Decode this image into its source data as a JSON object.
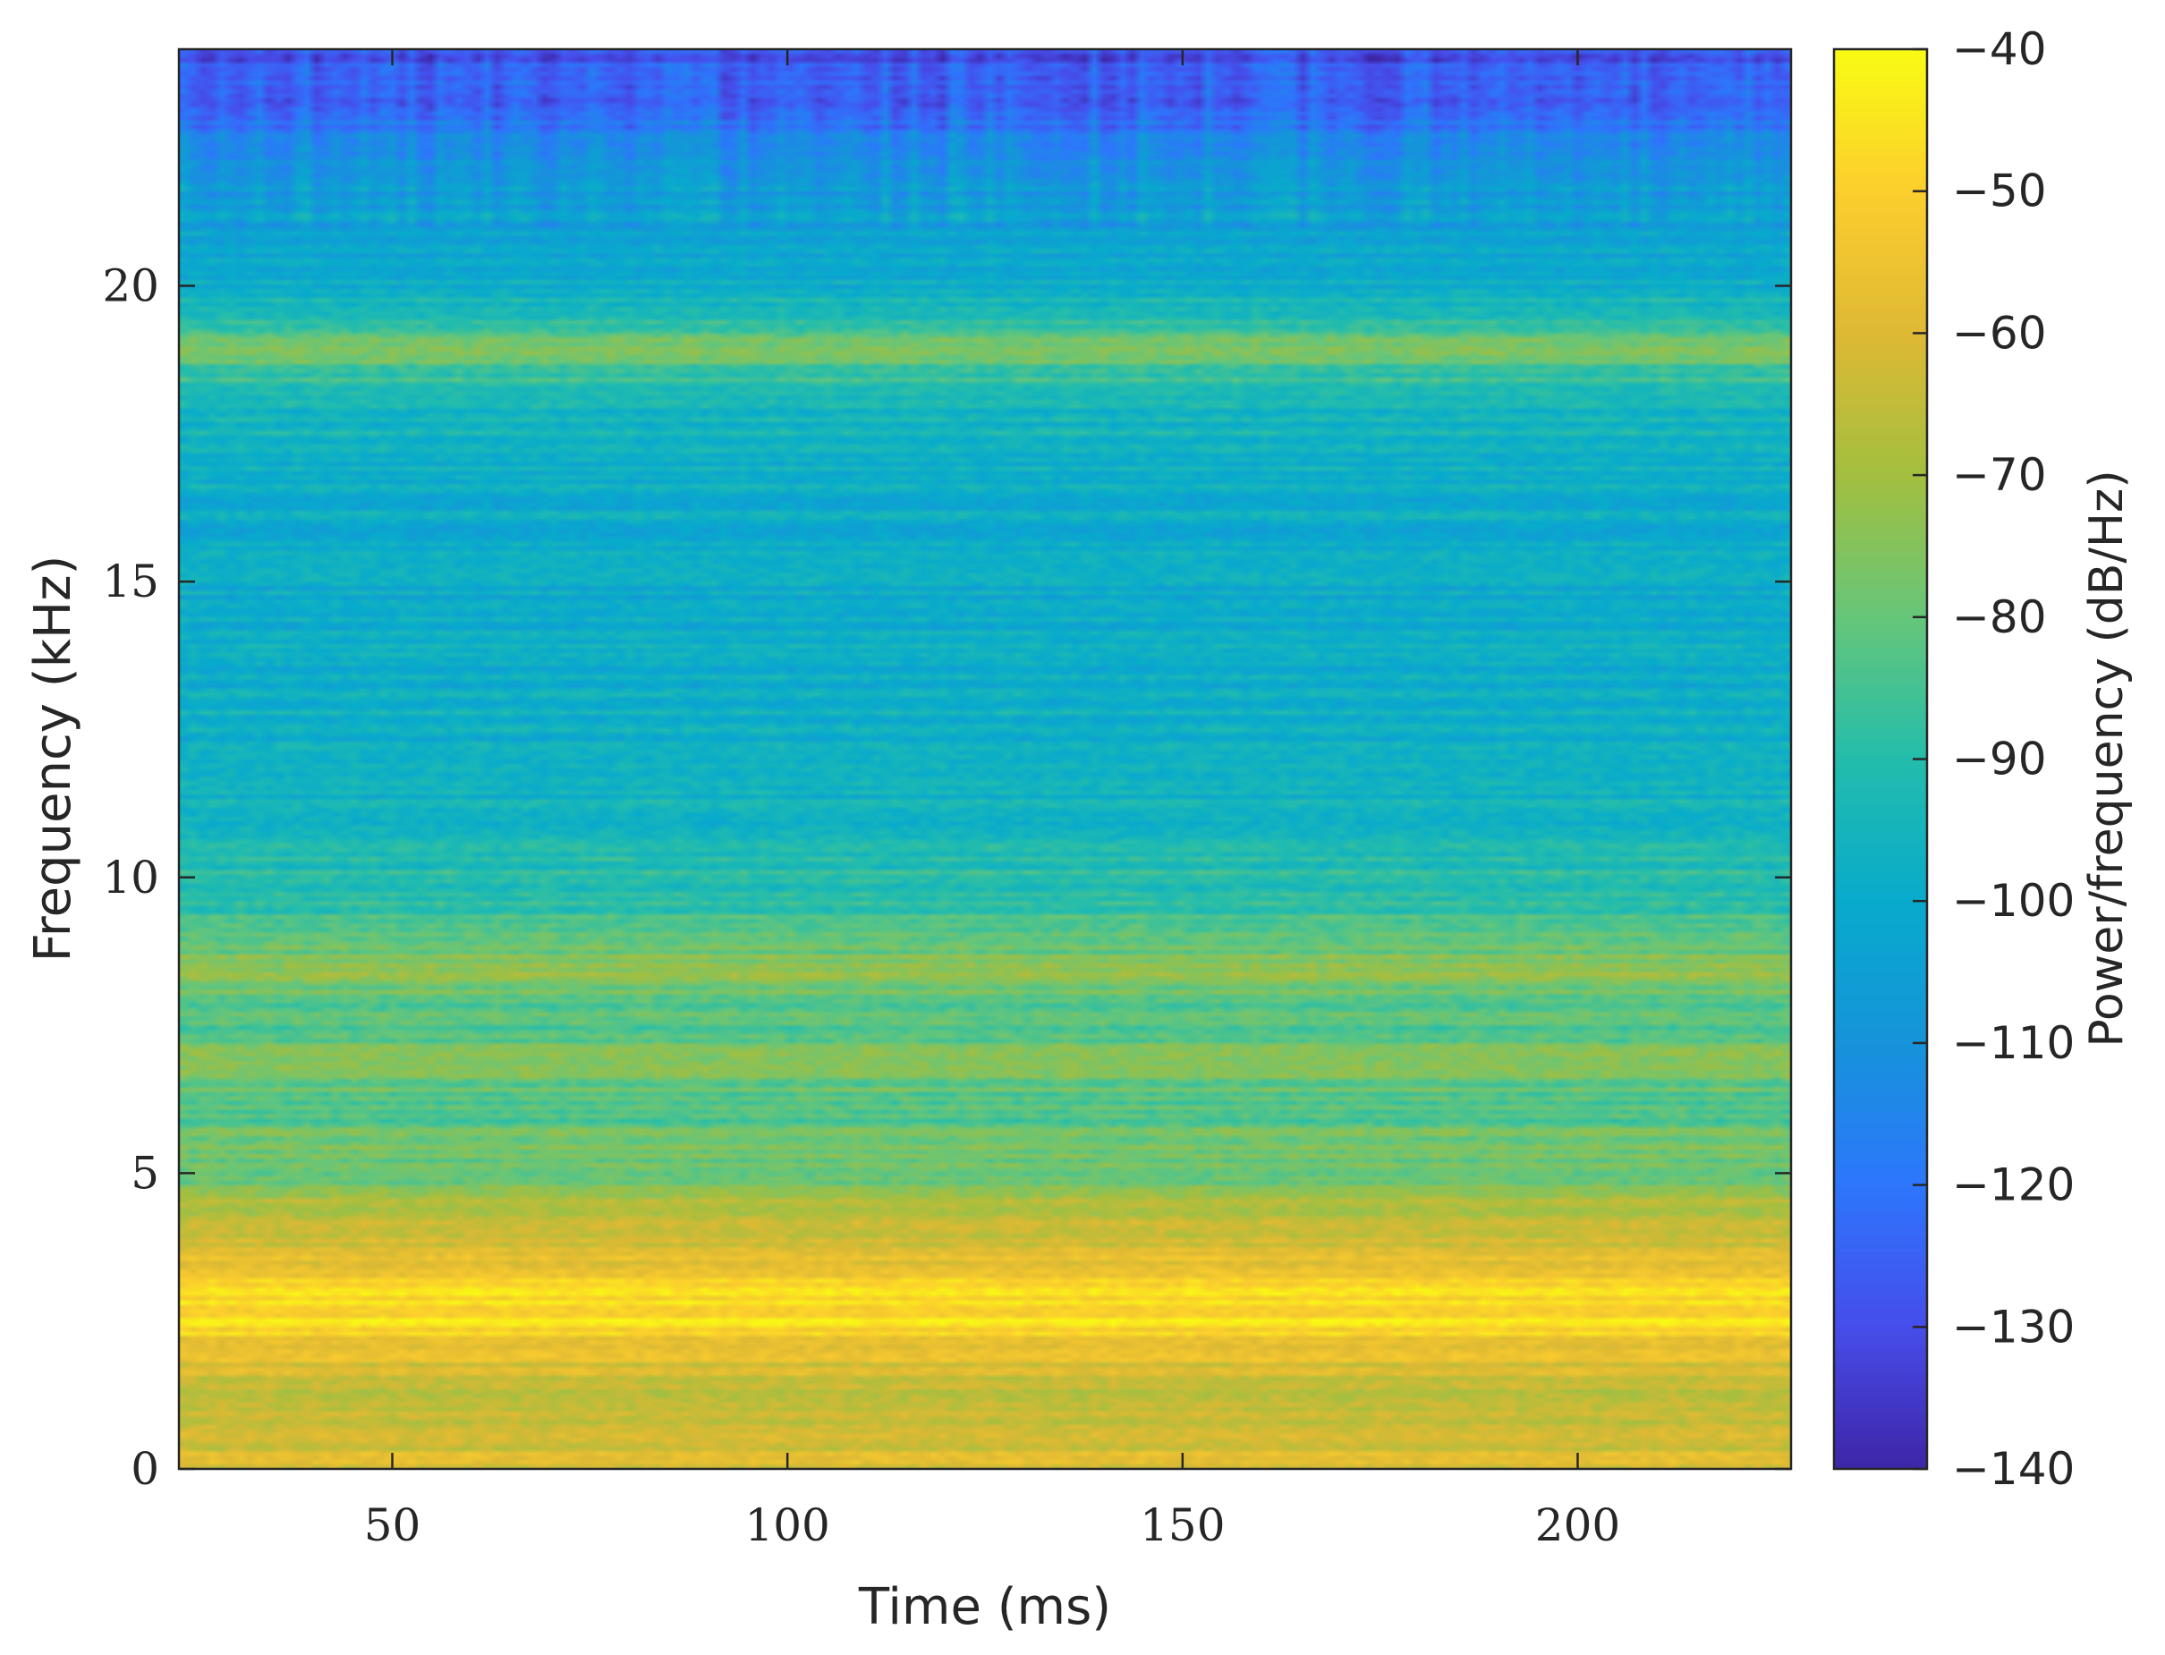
{
  "chart_data": {
    "type": "heatmap",
    "title": "",
    "xlabel": "Time (ms)",
    "ylabel": "Frequency (kHz)",
    "xlim": [
      23,
      227
    ],
    "ylim": [
      0,
      24
    ],
    "x_ticks": [
      50,
      100,
      150,
      200
    ],
    "x_tick_labels": [
      "50",
      "100",
      "150",
      "200"
    ],
    "y_ticks": [
      0,
      5,
      10,
      15,
      20
    ],
    "y_tick_labels": [
      "0",
      "5",
      "10",
      "15",
      "20"
    ],
    "colorbar": {
      "label": "Power/frequency (dB/Hz)",
      "range": [
        -140,
        -40
      ],
      "ticks": [
        -40,
        -50,
        -60,
        -70,
        -80,
        -90,
        -100,
        -110,
        -120,
        -130,
        -140
      ],
      "tick_labels": [
        "−40",
        "−50",
        "−60",
        "−70",
        "−80",
        "−90",
        "−100",
        "−110",
        "−120",
        "−130",
        "−140"
      ],
      "colormap": "parula"
    },
    "band_profile_db": {
      "frequency_khz": [
        0,
        0.5,
        1.0,
        1.5,
        2.0,
        2.5,
        3.0,
        3.5,
        4.0,
        4.5,
        5.0,
        5.5,
        6.0,
        6.5,
        7.0,
        7.5,
        8.0,
        8.5,
        9.0,
        10.0,
        11.0,
        12.0,
        13.0,
        14.0,
        15.0,
        16.0,
        17.0,
        18.0,
        18.6,
        18.9,
        19.3,
        20.0,
        21.0,
        22.0,
        22.5,
        23.0,
        24.0
      ],
      "level_db": [
        -62,
        -60,
        -64,
        -62,
        -58,
        -46,
        -48,
        -58,
        -64,
        -68,
        -80,
        -76,
        -84,
        -80,
        -78,
        -82,
        -80,
        -72,
        -84,
        -90,
        -96,
        -98,
        -98,
        -100,
        -100,
        -100,
        -98,
        -94,
        -86,
        -72,
        -90,
        -98,
        -104,
        -108,
        -116,
        -124,
        -128
      ]
    },
    "features": [
      {
        "frequency_khz": 2.7,
        "level_db": -44
      },
      {
        "frequency_khz": 8.4,
        "level_db": -72
      },
      {
        "frequency_khz": 18.9,
        "level_db": -72
      }
    ]
  }
}
